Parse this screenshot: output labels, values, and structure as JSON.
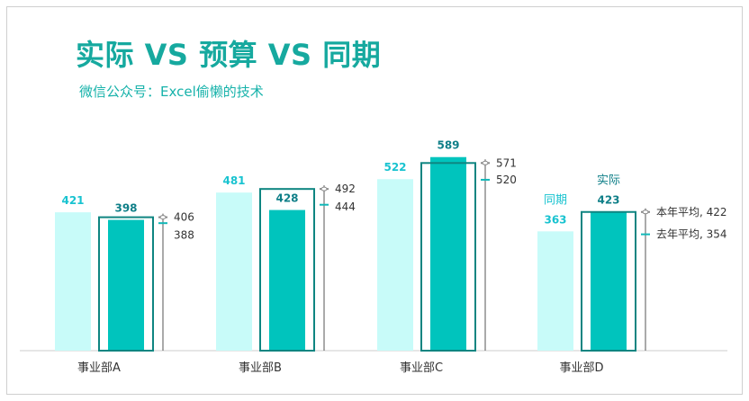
{
  "title": "实际 VS 预算 VS 同期",
  "subtitle": "微信公众号：Excel偷懒的技术",
  "colors": {
    "prior": "#c8fbf9",
    "actual": "#00c4bd",
    "budget_outline": "#0e8581",
    "label_prior": "#19c3d0",
    "label_actual": "#0f7f88",
    "marker_curr": "#888888",
    "marker_last": "#11b8b8",
    "text": "#333333",
    "axis": "#cccccc"
  },
  "chart_data": {
    "type": "bar",
    "categories": [
      "事业部A",
      "事业部B",
      "事业部C",
      "事业部D"
    ],
    "series": [
      {
        "name": "同期",
        "values": [
          421,
          481,
          522,
          363
        ]
      },
      {
        "name": "实际",
        "values": [
          398,
          428,
          589,
          423
        ]
      },
      {
        "name": "",
        "values": [
          406,
          492,
          571,
          422
        ]
      },
      {
        "name": "",
        "values": [
          388,
          444,
          520,
          354
        ]
      }
    ],
    "budget_outline_values": [
      406,
      492,
      571,
      422
    ],
    "legend_labels": {
      "prior": "同期",
      "actual": "实际"
    },
    "marker_labels": {
      "current_avg": "本年平均",
      "last_avg": "去年平均"
    },
    "ylim": [
      0,
      700
    ],
    "grid": false
  }
}
